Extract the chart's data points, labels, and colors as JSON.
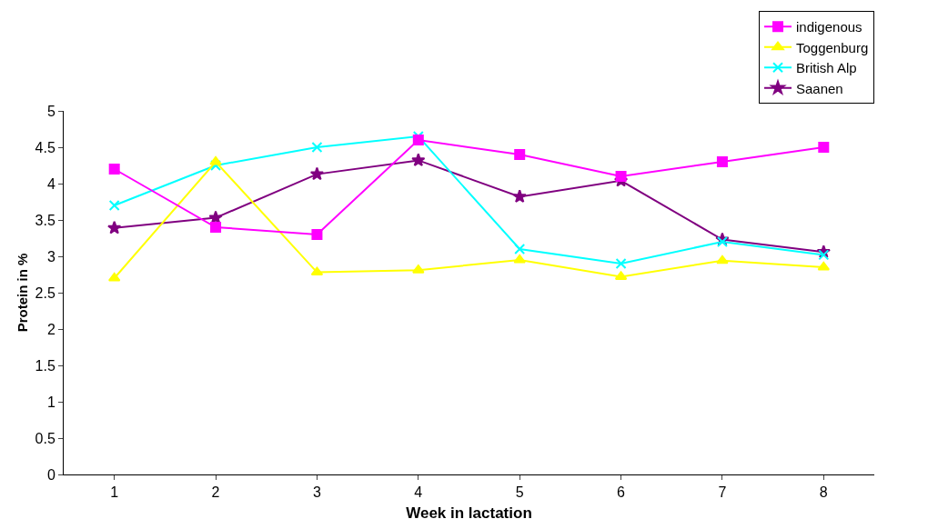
{
  "chart_data": {
    "type": "line",
    "xlabel": "Week in lactation",
    "ylabel": "Protein in %",
    "categories": [
      "1",
      "2",
      "3",
      "4",
      "5",
      "6",
      "7",
      "8"
    ],
    "series": [
      {
        "name": "indigenous",
        "color": "#ff00ff",
        "marker": "square",
        "values": [
          4.2,
          3.4,
          3.3,
          4.6,
          4.4,
          4.1,
          4.3,
          4.5
        ]
      },
      {
        "name": "Toggenburg",
        "color": "#ffff00",
        "marker": "triangle",
        "values": [
          2.7,
          4.3,
          2.78,
          2.81,
          2.95,
          2.72,
          2.94,
          2.85
        ]
      },
      {
        "name": "British Alp",
        "color": "#00ffff",
        "marker": "cross",
        "values": [
          3.7,
          4.25,
          4.5,
          4.65,
          3.1,
          2.9,
          3.2,
          3.02
        ]
      },
      {
        "name": "Saanen",
        "color": "#800080",
        "marker": "star",
        "values": [
          3.39,
          3.53,
          4.13,
          4.32,
          3.82,
          4.04,
          3.23,
          3.06
        ]
      }
    ],
    "ylim": [
      0,
      5
    ],
    "yticks": [
      0,
      0.5,
      1,
      1.5,
      2,
      2.5,
      3,
      3.5,
      4,
      4.5,
      5
    ],
    "grid": false,
    "legend": "top right"
  }
}
